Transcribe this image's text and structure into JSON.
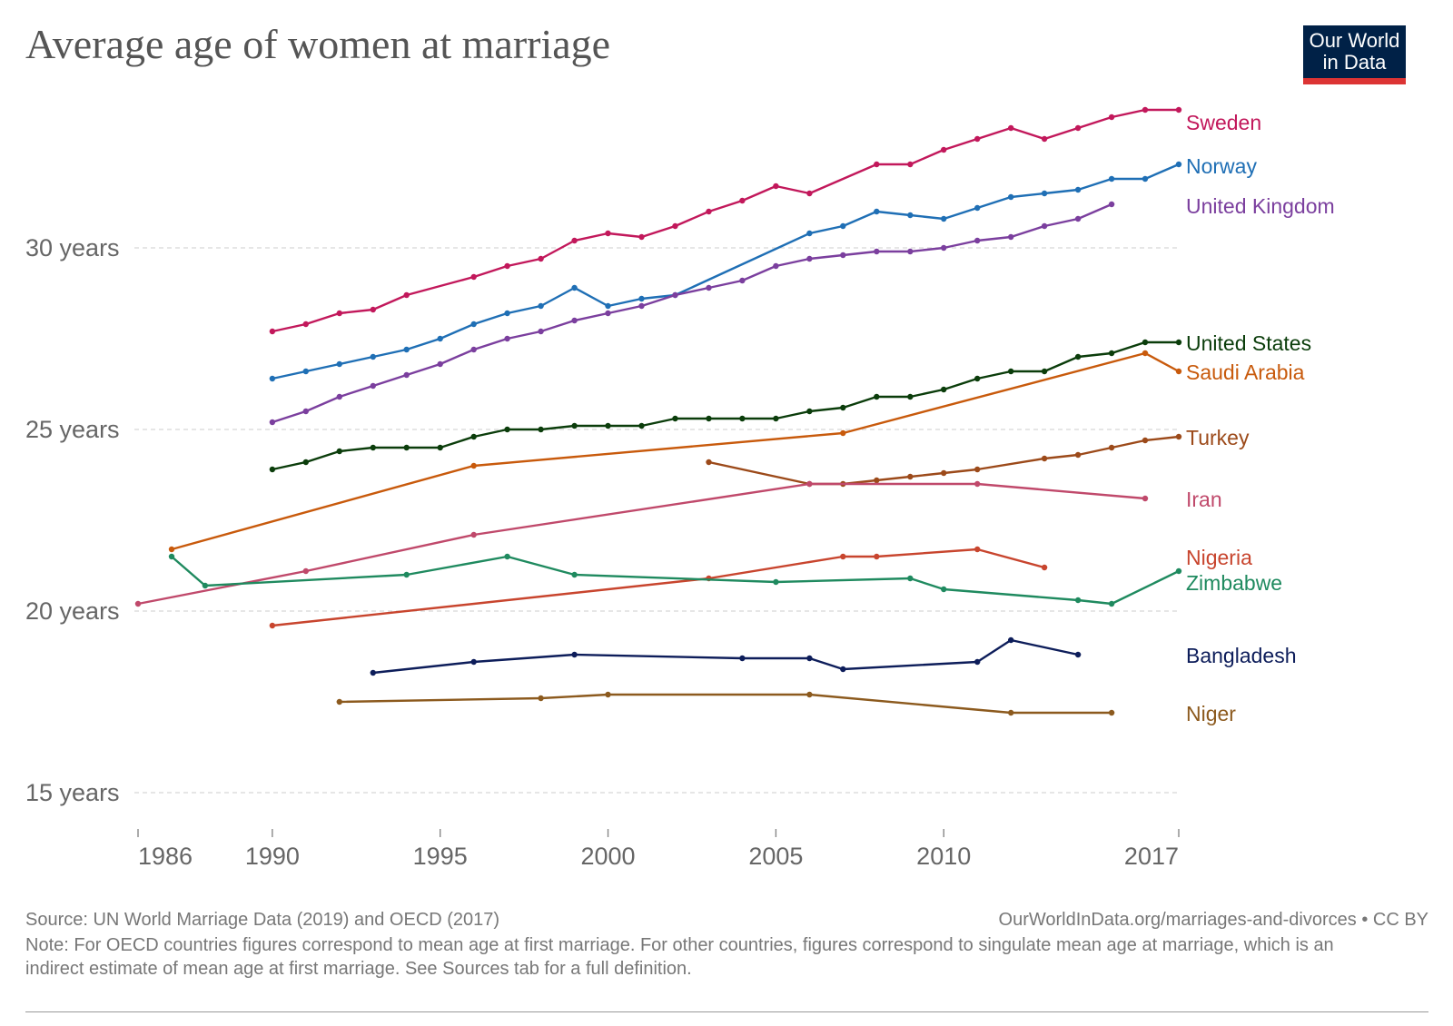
{
  "title": "Average age of women at marriage",
  "logo": {
    "line1": "Our World",
    "line2": "in Data"
  },
  "footer": {
    "source": "Source: UN World Marriage Data (2019) and OECD (2017)",
    "url": "OurWorldInData.org/marriages-and-divorces • CC BY",
    "note": "Note: For OECD countries figures correspond to mean age at first marriage. For other countries, figures correspond to singulate mean age at marriage, which is an indirect estimate of mean age at first marriage. See Sources tab for a full definition."
  },
  "chart_data": {
    "type": "line",
    "title": "Average age of women at marriage",
    "xlabel": "",
    "ylabel": "",
    "xlim": [
      1986,
      2017
    ],
    "ylim": [
      15,
      33
    ],
    "grid": true,
    "legend": "labels at line ends (right)",
    "x_ticks": [
      1986,
      1990,
      1995,
      2000,
      2005,
      2010,
      2017
    ],
    "y_ticks": [
      {
        "value": 15,
        "label": "15 years"
      },
      {
        "value": 20,
        "label": "20 years"
      },
      {
        "value": 25,
        "label": "25 years"
      },
      {
        "value": 30,
        "label": "30 years"
      }
    ],
    "series": [
      {
        "name": "Sweden",
        "color": "#c2185b",
        "points": [
          [
            1990,
            27.7
          ],
          [
            1991,
            27.9
          ],
          [
            1992,
            28.2
          ],
          [
            1993,
            28.3
          ],
          [
            1994,
            28.7
          ],
          [
            1996,
            29.2
          ],
          [
            1997,
            29.5
          ],
          [
            1998,
            29.7
          ],
          [
            1999,
            30.2
          ],
          [
            2000,
            30.4
          ],
          [
            2001,
            30.3
          ],
          [
            2002,
            30.6
          ],
          [
            2003,
            31.0
          ],
          [
            2004,
            31.3
          ],
          [
            2005,
            31.7
          ],
          [
            2006,
            31.5
          ],
          [
            2008,
            32.3
          ],
          [
            2009,
            32.3
          ],
          [
            2010,
            32.7
          ],
          [
            2011,
            33.0
          ],
          [
            2012,
            33.3
          ],
          [
            2013,
            33.0
          ],
          [
            2014,
            33.3
          ],
          [
            2015,
            33.6
          ],
          [
            2016,
            33.8
          ],
          [
            2017,
            33.8
          ]
        ]
      },
      {
        "name": "Norway",
        "color": "#1f6fb5",
        "points": [
          [
            1990,
            26.4
          ],
          [
            1991,
            26.6
          ],
          [
            1992,
            26.8
          ],
          [
            1993,
            27.0
          ],
          [
            1994,
            27.2
          ],
          [
            1995,
            27.5
          ],
          [
            1996,
            27.9
          ],
          [
            1997,
            28.2
          ],
          [
            1998,
            28.4
          ],
          [
            1999,
            28.9
          ],
          [
            2000,
            28.4
          ],
          [
            2001,
            28.6
          ],
          [
            2002,
            28.7
          ],
          [
            2006,
            30.4
          ],
          [
            2007,
            30.6
          ],
          [
            2008,
            31.0
          ],
          [
            2009,
            30.9
          ],
          [
            2010,
            30.8
          ],
          [
            2011,
            31.1
          ],
          [
            2012,
            31.4
          ],
          [
            2013,
            31.5
          ],
          [
            2014,
            31.6
          ],
          [
            2015,
            31.9
          ],
          [
            2016,
            31.9
          ],
          [
            2017,
            32.3
          ]
        ]
      },
      {
        "name": "United Kingdom",
        "color": "#7b3f9e",
        "points": [
          [
            1990,
            25.2
          ],
          [
            1991,
            25.5
          ],
          [
            1992,
            25.9
          ],
          [
            1993,
            26.2
          ],
          [
            1994,
            26.5
          ],
          [
            1995,
            26.8
          ],
          [
            1996,
            27.2
          ],
          [
            1997,
            27.5
          ],
          [
            1998,
            27.7
          ],
          [
            1999,
            28.0
          ],
          [
            2000,
            28.2
          ],
          [
            2001,
            28.4
          ],
          [
            2002,
            28.7
          ],
          [
            2003,
            28.9
          ],
          [
            2004,
            29.1
          ],
          [
            2005,
            29.5
          ],
          [
            2006,
            29.7
          ],
          [
            2007,
            29.8
          ],
          [
            2008,
            29.9
          ],
          [
            2009,
            29.9
          ],
          [
            2010,
            30.0
          ],
          [
            2011,
            30.2
          ],
          [
            2012,
            30.3
          ],
          [
            2013,
            30.6
          ],
          [
            2014,
            30.8
          ],
          [
            2015,
            31.2
          ]
        ]
      },
      {
        "name": "United States",
        "color": "#0b3d0b",
        "points": [
          [
            1990,
            23.9
          ],
          [
            1991,
            24.1
          ],
          [
            1992,
            24.4
          ],
          [
            1993,
            24.5
          ],
          [
            1994,
            24.5
          ],
          [
            1995,
            24.5
          ],
          [
            1996,
            24.8
          ],
          [
            1997,
            25.0
          ],
          [
            1998,
            25.0
          ],
          [
            1999,
            25.1
          ],
          [
            2000,
            25.1
          ],
          [
            2001,
            25.1
          ],
          [
            2002,
            25.3
          ],
          [
            2003,
            25.3
          ],
          [
            2004,
            25.3
          ],
          [
            2005,
            25.3
          ],
          [
            2006,
            25.5
          ],
          [
            2007,
            25.6
          ],
          [
            2008,
            25.9
          ],
          [
            2009,
            25.9
          ],
          [
            2010,
            26.1
          ],
          [
            2011,
            26.4
          ],
          [
            2012,
            26.6
          ],
          [
            2013,
            26.6
          ],
          [
            2014,
            27.0
          ],
          [
            2015,
            27.1
          ],
          [
            2016,
            27.4
          ],
          [
            2017,
            27.4
          ]
        ]
      },
      {
        "name": "Saudi Arabia",
        "color": "#c85a0c",
        "points": [
          [
            1987,
            21.7
          ],
          [
            1996,
            24.0
          ],
          [
            2007,
            24.9
          ],
          [
            2016,
            27.1
          ],
          [
            2017,
            26.6
          ]
        ]
      },
      {
        "name": "Turkey",
        "color": "#9c4a1a",
        "points": [
          [
            2003,
            24.1
          ],
          [
            2006,
            23.5
          ],
          [
            2007,
            23.5
          ],
          [
            2008,
            23.6
          ],
          [
            2009,
            23.7
          ],
          [
            2010,
            23.8
          ],
          [
            2011,
            23.9
          ],
          [
            2013,
            24.2
          ],
          [
            2014,
            24.3
          ],
          [
            2015,
            24.5
          ],
          [
            2016,
            24.7
          ],
          [
            2017,
            24.8
          ]
        ]
      },
      {
        "name": "Iran",
        "color": "#c0496b",
        "points": [
          [
            1986,
            20.2
          ],
          [
            1991,
            21.1
          ],
          [
            1996,
            22.1
          ],
          [
            2006,
            23.5
          ],
          [
            2011,
            23.5
          ],
          [
            2016,
            23.1
          ]
        ]
      },
      {
        "name": "Nigeria",
        "color": "#c8452e",
        "points": [
          [
            1990,
            19.6
          ],
          [
            2003,
            20.9
          ],
          [
            2007,
            21.5
          ],
          [
            2008,
            21.5
          ],
          [
            2011,
            21.7
          ],
          [
            2013,
            21.2
          ]
        ]
      },
      {
        "name": "Zimbabwe",
        "color": "#1f8a5f",
        "points": [
          [
            1987,
            21.5
          ],
          [
            1988,
            20.7
          ],
          [
            1994,
            21.0
          ],
          [
            1997,
            21.5
          ],
          [
            1999,
            21.0
          ],
          [
            2005,
            20.8
          ],
          [
            2009,
            20.9
          ],
          [
            2010,
            20.6
          ],
          [
            2014,
            20.3
          ],
          [
            2015,
            20.2
          ],
          [
            2017,
            21.1
          ]
        ]
      },
      {
        "name": "Bangladesh",
        "color": "#0d1d5a",
        "points": [
          [
            1993,
            18.3
          ],
          [
            1996,
            18.6
          ],
          [
            1999,
            18.8
          ],
          [
            2004,
            18.7
          ],
          [
            2006,
            18.7
          ],
          [
            2007,
            18.4
          ],
          [
            2011,
            18.6
          ],
          [
            2012,
            19.2
          ],
          [
            2014,
            18.8
          ]
        ]
      },
      {
        "name": "Niger",
        "color": "#8c5a1e",
        "points": [
          [
            1992,
            17.5
          ],
          [
            1998,
            17.6
          ],
          [
            2000,
            17.7
          ],
          [
            2006,
            17.7
          ],
          [
            2012,
            17.2
          ],
          [
            2015,
            17.2
          ]
        ]
      }
    ]
  }
}
